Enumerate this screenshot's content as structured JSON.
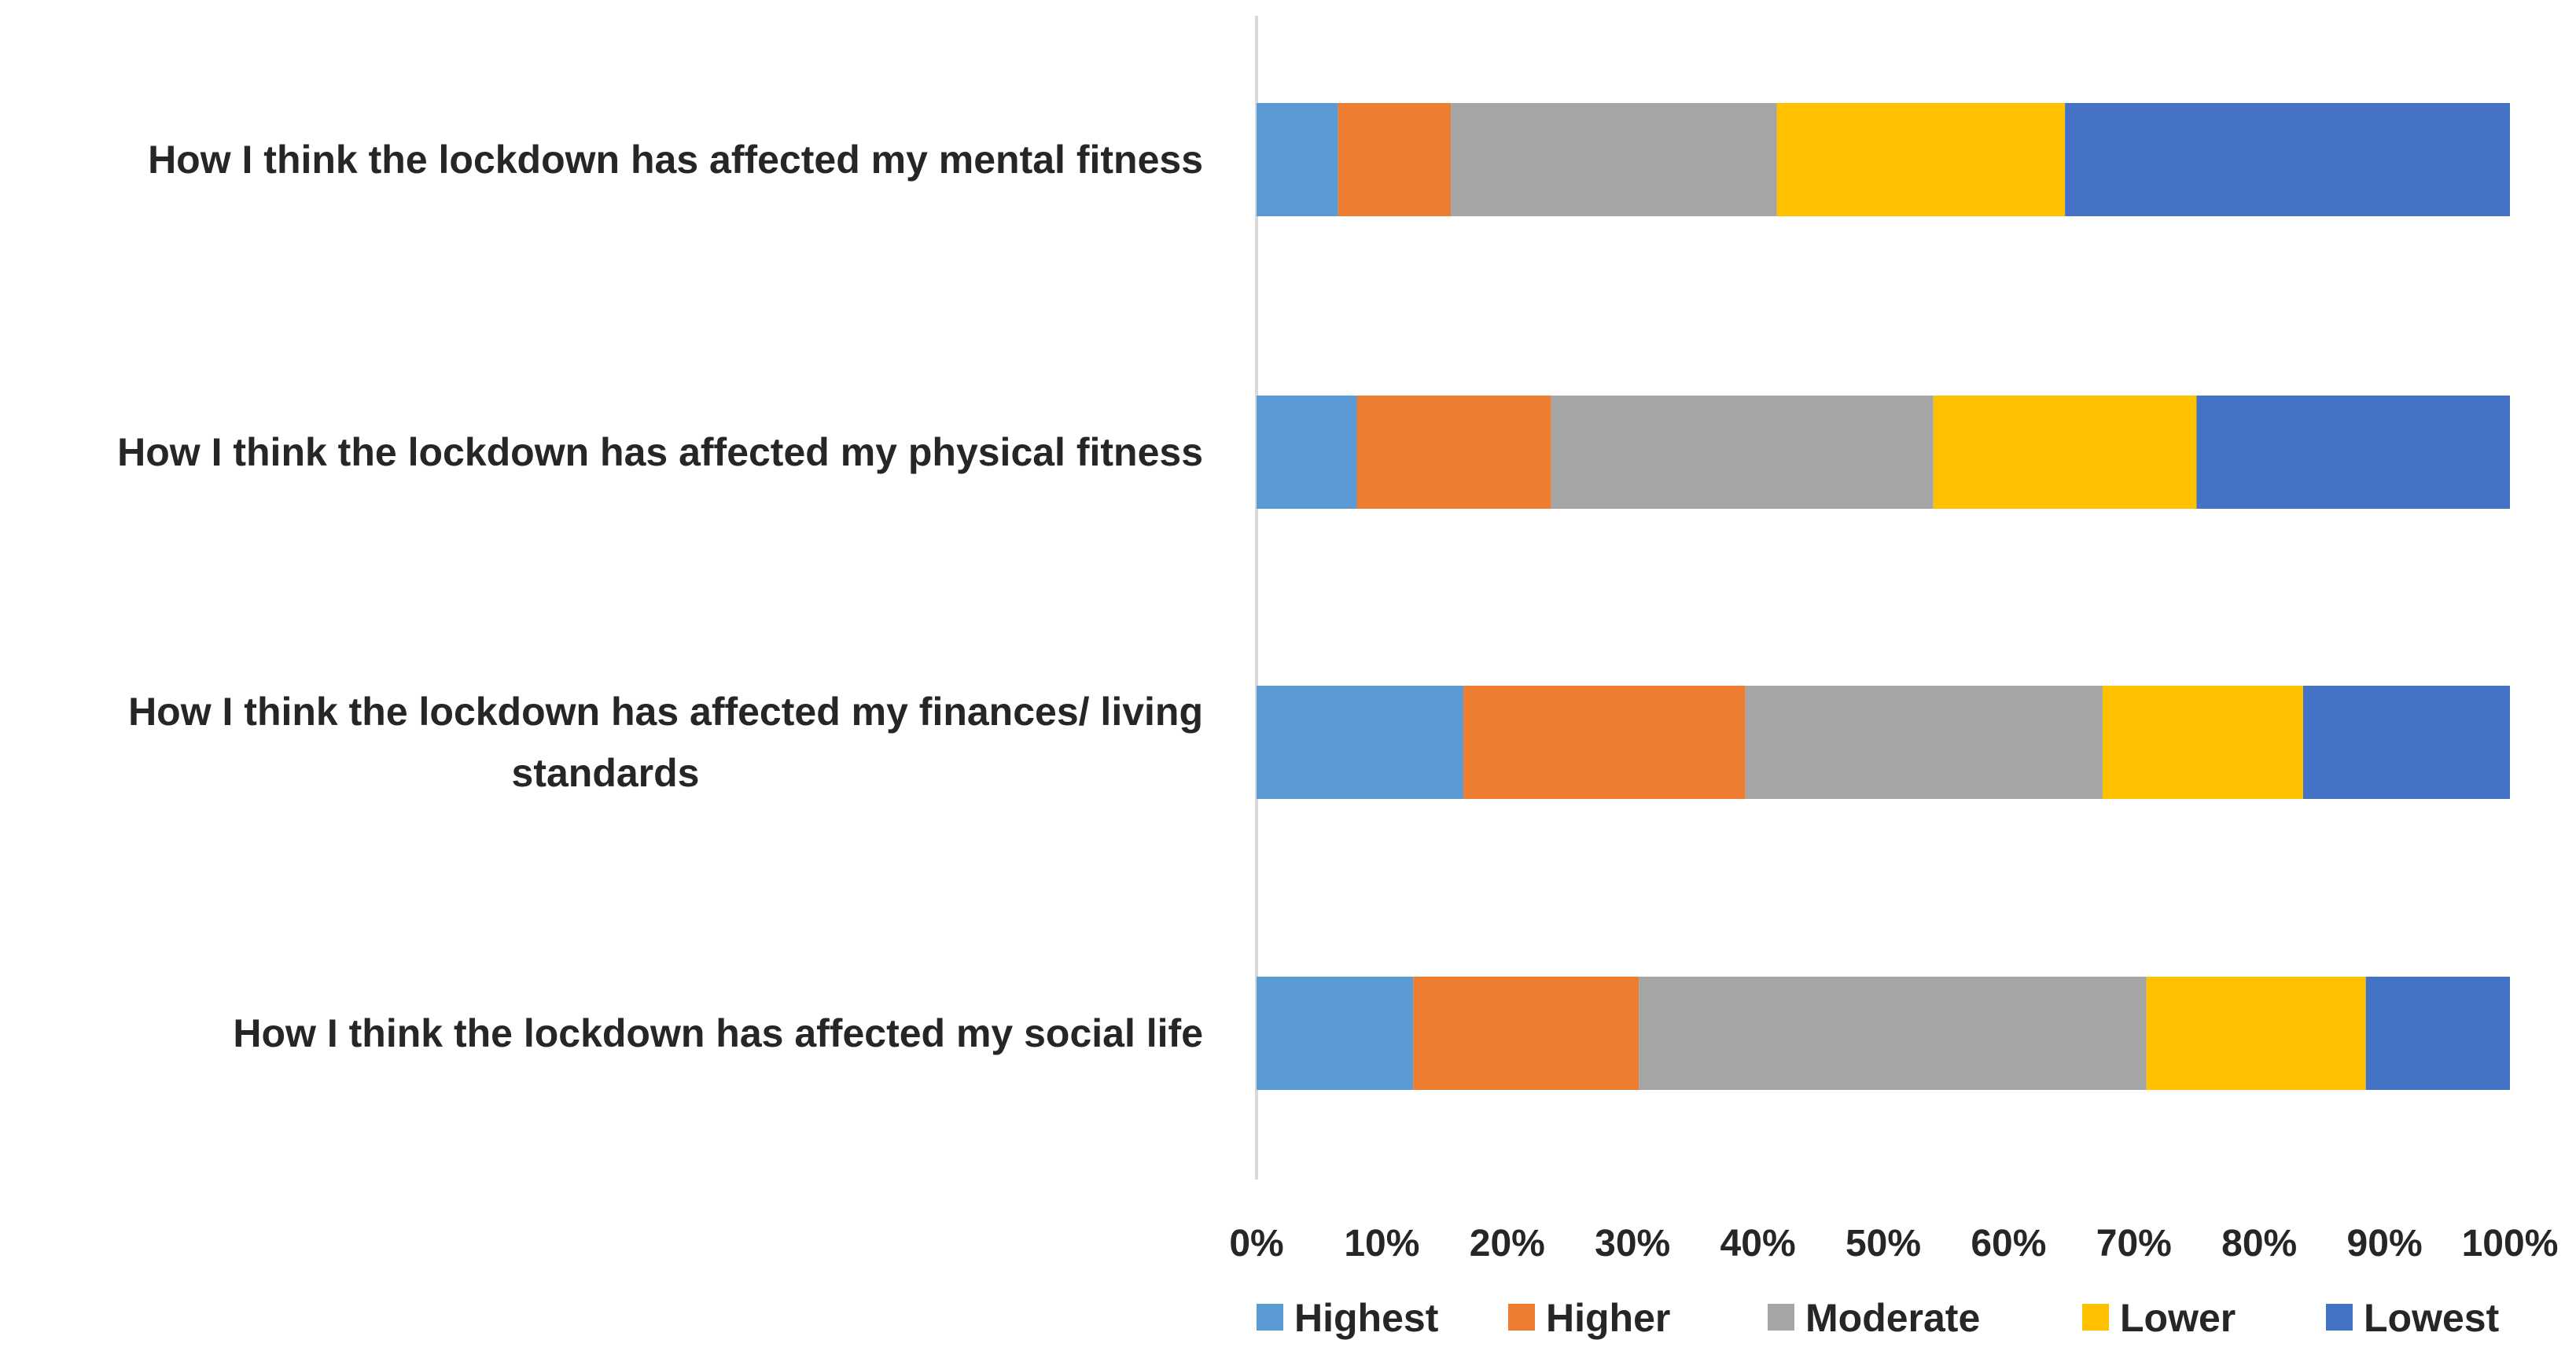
{
  "chart_data": {
    "type": "bar",
    "orientation": "horizontal",
    "stacked": true,
    "percent_stacked": true,
    "categories": [
      [
        "How I think the lockdown has affected my mental fitness"
      ],
      [
        "How I think the lockdown has affected my physical fitness"
      ],
      [
        "How I think the lockdown has affected my finances/ living",
        "standards"
      ],
      [
        "How I think the lockdown has affected my  social life"
      ]
    ],
    "series": [
      {
        "name": "Highest",
        "color": "#5B9BD5",
        "values": [
          6.5,
          8,
          16.5,
          12.5
        ]
      },
      {
        "name": "Higher",
        "color": "#ED7D31",
        "values": [
          9,
          15.5,
          22.5,
          18
        ]
      },
      {
        "name": "Moderate",
        "color": "#A5A5A5",
        "values": [
          26,
          30.5,
          28.5,
          40.5
        ]
      },
      {
        "name": "Lower",
        "color": "#FFC000",
        "values": [
          23,
          21,
          16,
          17.5
        ]
      },
      {
        "name": "Lowest",
        "color": "#4472C4",
        "values": [
          35.5,
          25,
          16.5,
          11.5
        ]
      }
    ],
    "x_ticks": [
      "0%",
      "10%",
      "20%",
      "30%",
      "40%",
      "50%",
      "60%",
      "70%",
      "80%",
      "90%",
      "100%"
    ],
    "xlim": [
      0,
      100
    ],
    "title": "",
    "xlabel": "",
    "ylabel": "",
    "grid": false,
    "legend_position": "bottom"
  }
}
